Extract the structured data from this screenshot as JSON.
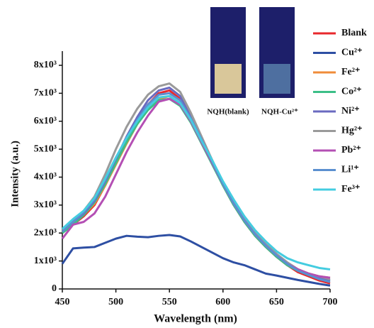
{
  "chart_data": {
    "type": "line",
    "x_label": "Wavelength (nm)",
    "y_label": "Intensity (a.u.)",
    "annotations": [
      "NQH(blank)",
      "NQH-Cu²⁺"
    ],
    "x": [
      450,
      460,
      470,
      480,
      490,
      500,
      510,
      520,
      530,
      540,
      550,
      560,
      570,
      580,
      590,
      600,
      610,
      620,
      630,
      640,
      650,
      660,
      670,
      680,
      690,
      700
    ],
    "series": [
      {
        "name": "Blank",
        "color": "#e8282c",
        "values": [
          2000,
          2300,
          2600,
          3000,
          3700,
          4500,
          5300,
          6000,
          6600,
          7000,
          7100,
          6800,
          6100,
          5300,
          4500,
          3700,
          3000,
          2400,
          1900,
          1500,
          1150,
          850,
          600,
          450,
          300,
          200
        ]
      },
      {
        "name": "Cu²⁺",
        "color": "#2e4fa3",
        "values": [
          900,
          1450,
          1480,
          1500,
          1650,
          1800,
          1900,
          1870,
          1850,
          1900,
          1930,
          1880,
          1700,
          1500,
          1300,
          1100,
          950,
          850,
          700,
          550,
          480,
          400,
          320,
          250,
          180,
          120
        ]
      },
      {
        "name": "Fe²⁺",
        "color": "#f08c3a",
        "values": [
          2050,
          2350,
          2650,
          3050,
          3700,
          4450,
          5200,
          5900,
          6450,
          6800,
          6900,
          6650,
          6000,
          5250,
          4500,
          3750,
          3050,
          2450,
          1950,
          1550,
          1200,
          900,
          700,
          550,
          450,
          400
        ]
      },
      {
        "name": "Co²⁺",
        "color": "#3cbf88",
        "values": [
          2000,
          2300,
          2650,
          3100,
          3750,
          4500,
          5250,
          5900,
          6400,
          6750,
          6800,
          6550,
          5950,
          5200,
          4450,
          3700,
          3000,
          2400,
          1900,
          1500,
          1150,
          850,
          650,
          500,
          400,
          300
        ]
      },
      {
        "name": "Ni²⁺",
        "color": "#6a6ac0",
        "values": [
          2100,
          2400,
          2700,
          3150,
          3850,
          4650,
          5450,
          6150,
          6750,
          7100,
          7200,
          6900,
          6200,
          5400,
          4600,
          3800,
          3100,
          2500,
          2000,
          1600,
          1250,
          950,
          700,
          550,
          400,
          300
        ]
      },
      {
        "name": "Hg²⁺",
        "color": "#9a9a9a",
        "values": [
          2100,
          2450,
          2800,
          3300,
          4100,
          5000,
          5800,
          6450,
          6950,
          7250,
          7350,
          7050,
          6300,
          5450,
          4600,
          3800,
          3100,
          2500,
          2000,
          1600,
          1250,
          950,
          700,
          550,
          450,
          350
        ]
      },
      {
        "name": "Pb²⁺",
        "color": "#b44fb4",
        "values": [
          1800,
          2300,
          2400,
          2700,
          3300,
          4100,
          4900,
          5600,
          6200,
          6700,
          6800,
          6600,
          6000,
          5250,
          4500,
          3750,
          3050,
          2450,
          1950,
          1550,
          1200,
          900,
          700,
          550,
          450,
          400
        ]
      },
      {
        "name": "Li¹⁺",
        "color": "#5b8fd0",
        "values": [
          2050,
          2400,
          2750,
          3200,
          3900,
          4700,
          5400,
          6050,
          6600,
          6950,
          7000,
          6750,
          6100,
          5350,
          4550,
          3750,
          3050,
          2450,
          1950,
          1550,
          1200,
          900,
          650,
          500,
          350,
          250
        ]
      },
      {
        "name": "Fe³⁺",
        "color": "#44cce0",
        "values": [
          2150,
          2500,
          2800,
          3250,
          3950,
          4700,
          5400,
          6000,
          6500,
          6850,
          6900,
          6650,
          6050,
          5300,
          4600,
          3850,
          3200,
          2600,
          2100,
          1700,
          1350,
          1100,
          950,
          850,
          750,
          700
        ]
      }
    ],
    "xlim": [
      450,
      700
    ],
    "ylim": [
      0,
      8000
    ],
    "xticks": [
      450,
      500,
      550,
      600,
      650,
      700
    ],
    "yticks": [
      0,
      {
        "value": 1000,
        "label": "1x10³"
      },
      {
        "value": 2000,
        "label": "2x10³"
      },
      {
        "value": 3000,
        "label": "3x10³"
      },
      {
        "value": 4000,
        "label": "4x10³"
      },
      {
        "value": 5000,
        "label": "5x10³"
      },
      {
        "value": 6000,
        "label": "6x10³"
      },
      {
        "value": 7000,
        "label": "7x10³"
      },
      {
        "value": 8000,
        "label": "8x10³"
      }
    ]
  }
}
